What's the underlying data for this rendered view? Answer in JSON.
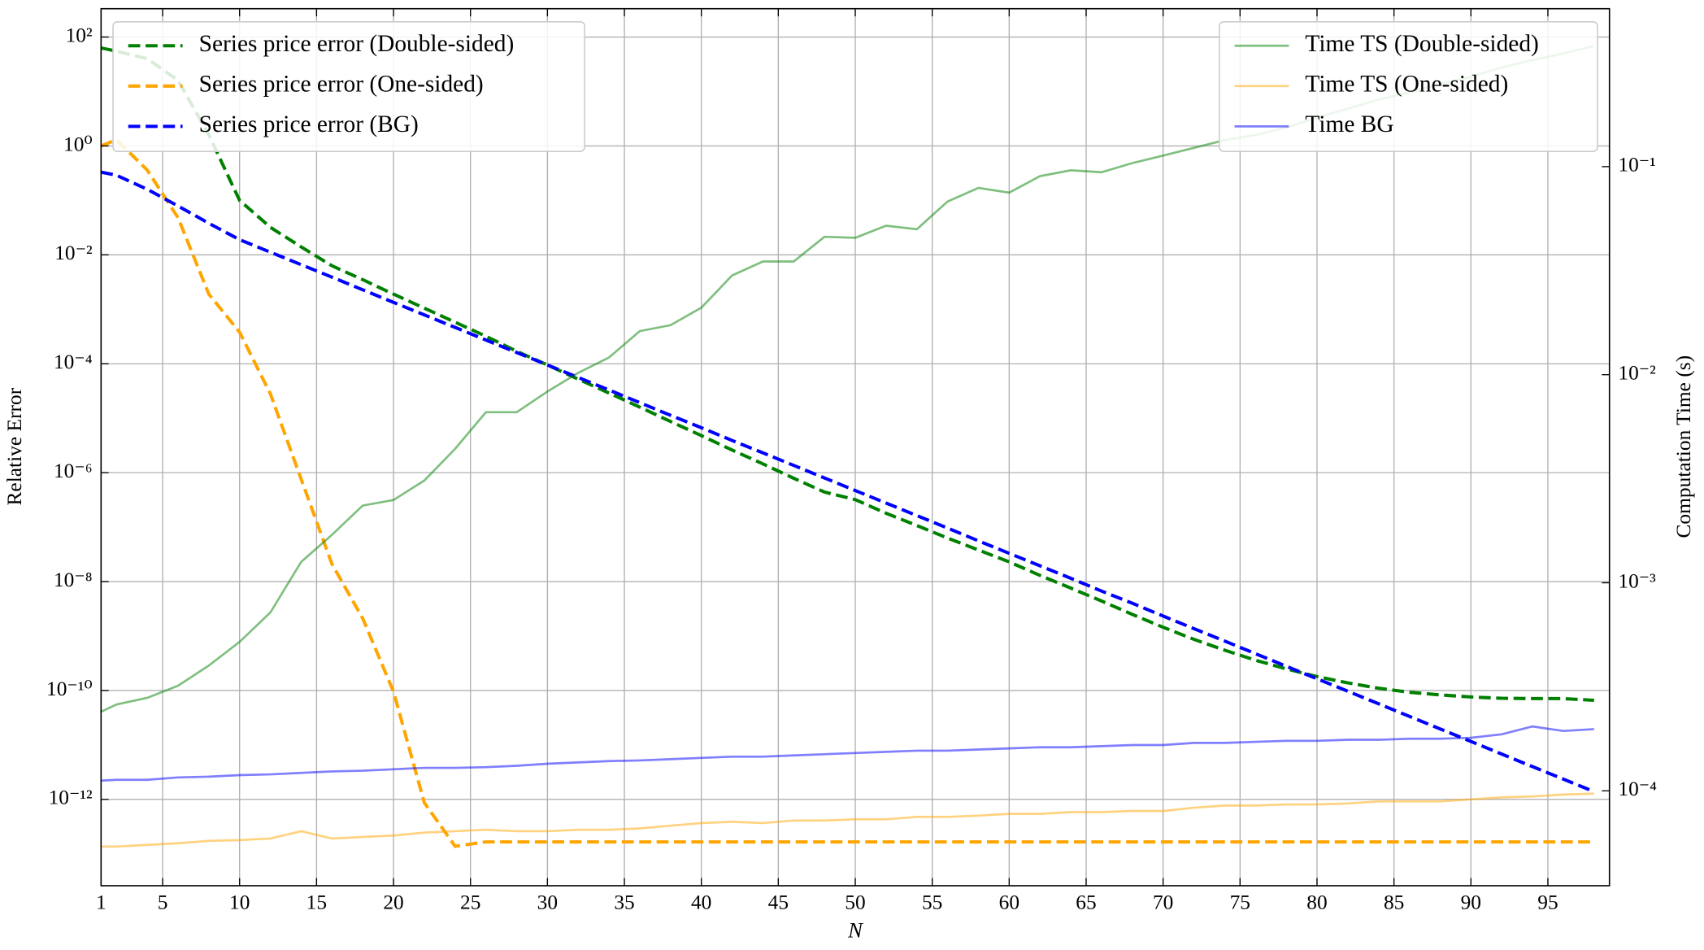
{
  "chart_data": {
    "type": "line",
    "xlabel": "N",
    "ylabel": "Relative Error",
    "y2label": "Computation Time (s)",
    "log_y": true,
    "log_y2": true,
    "grid": true,
    "legend_loc": "upper left",
    "y2_legend_loc": "upper right",
    "xlim": [
      1,
      99
    ],
    "xticks": [
      1,
      5,
      10,
      15,
      20,
      25,
      30,
      35,
      40,
      45,
      50,
      55,
      60,
      65,
      70,
      75,
      80,
      85,
      90,
      95
    ],
    "ylim": [
      2.6e-14,
      331
    ],
    "yticks": [
      {
        "value": 100,
        "label": "10²"
      },
      {
        "value": 1,
        "label": "10⁰"
      },
      {
        "value": 0.01,
        "label": "10⁻²"
      },
      {
        "value": 0.0001,
        "label": "10⁻⁴"
      },
      {
        "value": 1e-06,
        "label": "10⁻⁶"
      },
      {
        "value": 1e-08,
        "label": "10⁻⁸"
      },
      {
        "value": 1e-10,
        "label": "10⁻¹⁰"
      },
      {
        "value": 1e-12,
        "label": "10⁻¹²"
      }
    ],
    "y2lim": [
      3.5e-05,
      0.574
    ],
    "y2ticks": [
      {
        "value": 0.1,
        "label": "10⁻¹"
      },
      {
        "value": 0.01,
        "label": "10⁻²"
      },
      {
        "value": 0.001,
        "label": "10⁻³"
      },
      {
        "value": 0.0001,
        "label": "10⁻⁴"
      }
    ],
    "x": [
      1,
      2,
      4,
      6,
      8,
      10,
      12,
      14,
      16,
      18,
      20,
      22,
      24,
      26,
      28,
      30,
      32,
      34,
      36,
      38,
      40,
      42,
      44,
      46,
      48,
      50,
      52,
      54,
      56,
      58,
      60,
      62,
      64,
      66,
      68,
      70,
      72,
      74,
      76,
      78,
      80,
      82,
      84,
      86,
      88,
      90,
      92,
      94,
      96,
      98
    ],
    "series": [
      {
        "name": "Series price error (Double-sided)",
        "color": "#008000",
        "style": "dashed",
        "alpha": 1,
        "axis": "y",
        "values": [
          63,
          55,
          40,
          16,
          1.6,
          0.1,
          0.032,
          0.014,
          0.0063,
          0.0035,
          0.0019,
          0.00105,
          0.00058,
          0.00032,
          0.00017,
          9.5e-05,
          5.2e-05,
          2.9e-05,
          1.6e-05,
          8.7e-06,
          4.8e-06,
          2.6e-06,
          1.45e-06,
          7.9e-07,
          4.4e-07,
          3.2e-07,
          1.8e-07,
          1.07e-07,
          6.3e-08,
          3.8e-08,
          2.3e-08,
          1.3e-08,
          7.6e-09,
          4.4e-09,
          2.5e-09,
          1.45e-09,
          8.7e-10,
          5.5e-10,
          3.6e-10,
          2.5e-10,
          1.8e-10,
          1.38e-10,
          1.1e-10,
          9.3e-11,
          8.3e-11,
          7.6e-11,
          7.2e-11,
          7.1e-11,
          7.1e-11,
          6.6e-11
        ]
      },
      {
        "name": "Series price error (One-sided)",
        "color": "#ffa500",
        "style": "dashed",
        "alpha": 1,
        "axis": "y",
        "values": [
          1.0,
          1.3,
          0.36,
          0.048,
          0.0019,
          0.00038,
          2.8e-05,
          7.6e-07,
          2.1e-08,
          2.1e-09,
          9.5e-11,
          8.7e-13,
          1.38e-13,
          1.66e-13,
          1.66e-13,
          1.66e-13,
          1.66e-13,
          1.66e-13,
          1.66e-13,
          1.66e-13,
          1.66e-13,
          1.66e-13,
          1.66e-13,
          1.66e-13,
          1.66e-13,
          1.66e-13,
          1.66e-13,
          1.66e-13,
          1.66e-13,
          1.66e-13,
          1.66e-13,
          1.66e-13,
          1.66e-13,
          1.66e-13,
          1.66e-13,
          1.66e-13,
          1.66e-13,
          1.66e-13,
          1.66e-13,
          1.66e-13,
          1.66e-13,
          1.66e-13,
          1.66e-13,
          1.66e-13,
          1.66e-13,
          1.66e-13,
          1.66e-13,
          1.66e-13,
          1.66e-13,
          1.66e-13
        ]
      },
      {
        "name": "Series price error (BG)",
        "color": "#0000ff",
        "style": "dashed",
        "alpha": 1,
        "axis": "y",
        "values": [
          0.33,
          0.29,
          0.16,
          0.079,
          0.038,
          0.019,
          0.0112,
          0.0066,
          0.0039,
          0.00228,
          0.00134,
          0.00079,
          0.000465,
          0.000273,
          0.000161,
          9.5e-05,
          5.6e-05,
          3.3e-05,
          1.93e-05,
          1.13e-05,
          6.7e-06,
          3.9e-06,
          2.31e-06,
          1.36e-06,
          8e-07,
          4.7e-07,
          2.77e-07,
          1.63e-07,
          9.6e-08,
          5.6e-08,
          3.3e-08,
          1.95e-08,
          1.15e-08,
          6.7e-09,
          4e-09,
          2.33e-09,
          1.37e-09,
          8.1e-10,
          4.75e-10,
          2.79e-10,
          1.64e-10,
          9.7e-11,
          5.7e-11,
          3.35e-11,
          1.97e-11,
          1.16e-11,
          6.8e-12,
          4e-12,
          2.36e-12,
          1.39e-12
        ]
      },
      {
        "name": "Time TS (Double-sided)",
        "color": "#008000",
        "style": "solid",
        "alpha": 0.5,
        "axis": "y2",
        "values": [
          0.00024,
          0.00026,
          0.00028,
          0.00032,
          0.0004,
          0.00052,
          0.00072,
          0.00126,
          0.0017,
          0.00235,
          0.0025,
          0.0031,
          0.0044,
          0.0066,
          0.0066,
          0.0083,
          0.0102,
          0.0121,
          0.0162,
          0.0173,
          0.021,
          0.03,
          0.035,
          0.035,
          0.046,
          0.0455,
          0.052,
          0.05,
          0.068,
          0.079,
          0.075,
          0.09,
          0.096,
          0.094,
          0.104,
          0.113,
          0.123,
          0.134,
          0.142,
          0.154,
          0.172,
          0.19,
          0.21,
          0.227,
          0.25,
          0.27,
          0.3,
          0.325,
          0.35,
          0.38
        ]
      },
      {
        "name": "Time TS (One-sided)",
        "color": "#ffa500",
        "style": "solid",
        "alpha": 0.5,
        "axis": "y2",
        "values": [
          5.4e-05,
          5.4e-05,
          5.5e-05,
          5.6e-05,
          5.75e-05,
          5.8e-05,
          5.9e-05,
          6.4e-05,
          5.9e-05,
          6e-05,
          6.1e-05,
          6.3e-05,
          6.4e-05,
          6.5e-05,
          6.4e-05,
          6.4e-05,
          6.5e-05,
          6.5e-05,
          6.6e-05,
          6.8e-05,
          7e-05,
          7.1e-05,
          7e-05,
          7.2e-05,
          7.2e-05,
          7.3e-05,
          7.3e-05,
          7.5e-05,
          7.5e-05,
          7.6e-05,
          7.75e-05,
          7.75e-05,
          7.9e-05,
          7.9e-05,
          8e-05,
          8e-05,
          8.3e-05,
          8.5e-05,
          8.5e-05,
          8.6e-05,
          8.6e-05,
          8.7e-05,
          8.9e-05,
          8.9e-05,
          8.9e-05,
          9.1e-05,
          9.3e-05,
          9.4e-05,
          9.6e-05,
          9.7e-05
        ]
      },
      {
        "name": "Time BG",
        "color": "#0000ff",
        "style": "solid",
        "alpha": 0.5,
        "axis": "y2",
        "values": [
          0.000112,
          0.000113,
          0.000113,
          0.000116,
          0.000117,
          0.000119,
          0.00012,
          0.000122,
          0.000124,
          0.000125,
          0.000127,
          0.000129,
          0.000129,
          0.00013,
          0.000132,
          0.000135,
          0.000137,
          0.000139,
          0.00014,
          0.000142,
          0.000144,
          0.000146,
          0.000146,
          0.000148,
          0.00015,
          0.000152,
          0.000154,
          0.000156,
          0.000156,
          0.000158,
          0.00016,
          0.000162,
          0.000162,
          0.000164,
          0.000166,
          0.000166,
          0.00017,
          0.00017,
          0.000172,
          0.000174,
          0.000174,
          0.000176,
          0.000176,
          0.000178,
          0.000178,
          0.00018,
          0.000187,
          0.000204,
          0.000194,
          0.000198
        ]
      }
    ]
  }
}
